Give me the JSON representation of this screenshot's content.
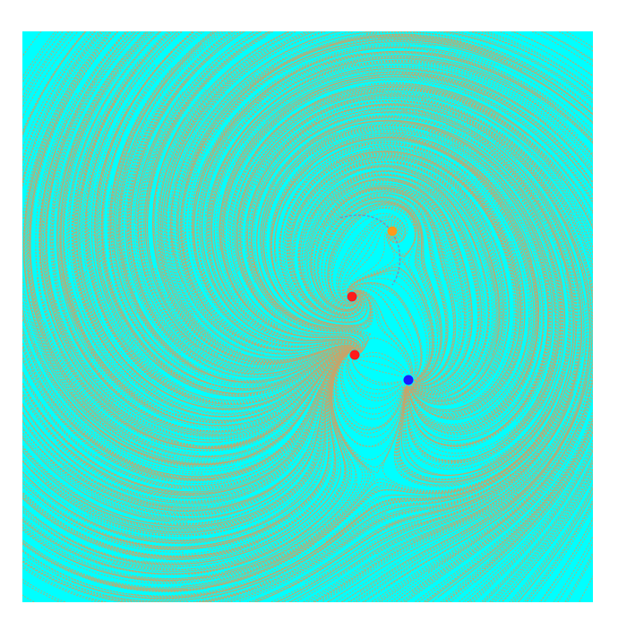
{
  "points": [
    {
      "color": "#ff1a1a"
    },
    {
      "color": "#ff1a1a"
    },
    {
      "color": "#1a1aff"
    },
    {
      "color": "#ff9a1a"
    }
  ],
  "background": "#00ffff",
  "streamline_color": "#c8a46a"
}
